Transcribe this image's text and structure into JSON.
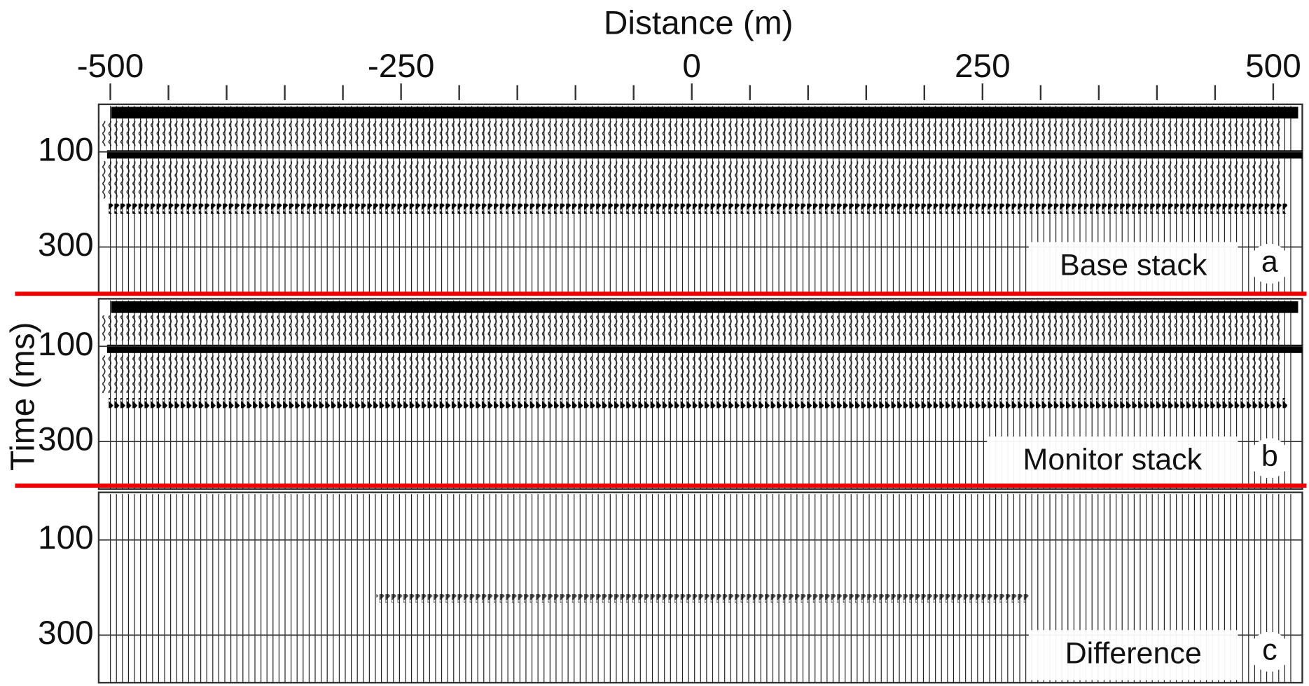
{
  "chart_data": [
    {
      "type": "wiggle",
      "title": "Base stack",
      "label": "a",
      "xlabel": "Distance (m)",
      "xlim": [
        -510,
        525
      ],
      "xticks": [
        -500,
        -250,
        0,
        250,
        500
      ],
      "ylim": [
        0,
        400
      ],
      "yticks": [
        100,
        300
      ]
    },
    {
      "type": "wiggle",
      "title": "Monitor stack",
      "label": "b",
      "ylabel": "Time (ms)",
      "xlim": [
        -510,
        525
      ],
      "ylim": [
        0,
        400
      ],
      "yticks": [
        100,
        300
      ]
    },
    {
      "type": "wiggle",
      "title": "Difference",
      "label": "c",
      "xlim": [
        -510,
        525
      ],
      "ylim": [
        0,
        400
      ],
      "yticks": [
        100,
        300
      ]
    }
  ]
}
